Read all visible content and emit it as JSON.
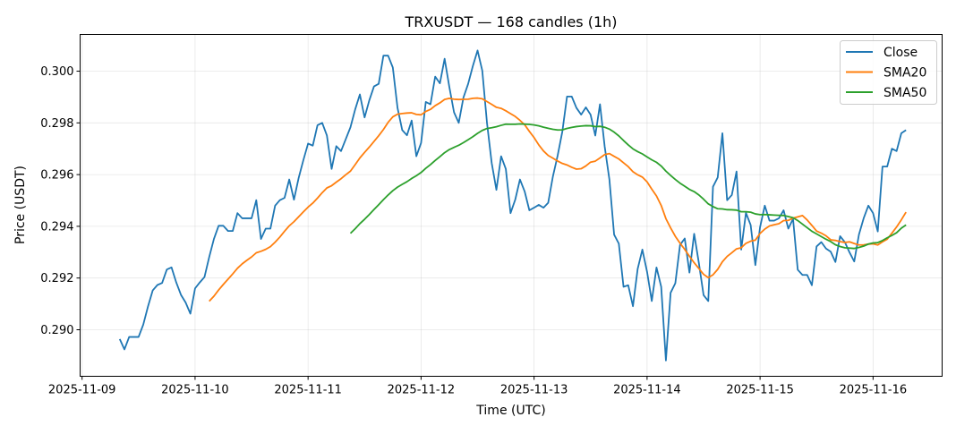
{
  "chart_data": {
    "type": "line",
    "title": "TRXUSDT — 168 candles (1h)",
    "xlabel": "Time (UTC)",
    "ylabel": "Price (USDT)",
    "x_start": "2025-11-09T08:00",
    "x_interval_hours": 1,
    "xlim": [
      "2025-11-08T23:35",
      "2025-11-16T14:40"
    ],
    "ylim": [
      0.2882,
      0.30142
    ],
    "x_ticks": [
      "2025-11-09",
      "2025-11-10",
      "2025-11-11",
      "2025-11-12",
      "2025-11-13",
      "2025-11-14",
      "2025-11-15",
      "2025-11-16"
    ],
    "y_ticks": [
      "0.290",
      "0.292",
      "0.294",
      "0.296",
      "0.298",
      "0.300"
    ],
    "grid": true,
    "legend_position": "top-right",
    "series": [
      {
        "name": "Close",
        "color": "#1f77b4",
        "values": [
          0.28964,
          0.28924,
          0.28972,
          0.28972,
          0.28972,
          0.2902,
          0.2909,
          0.29152,
          0.29173,
          0.29181,
          0.29233,
          0.29241,
          0.29183,
          0.29135,
          0.29105,
          0.29062,
          0.2916,
          0.29183,
          0.29204,
          0.29281,
          0.29351,
          0.29402,
          0.29402,
          0.29382,
          0.29382,
          0.29451,
          0.29431,
          0.29431,
          0.29431,
          0.29501,
          0.29351,
          0.29391,
          0.29391,
          0.2948,
          0.29501,
          0.2951,
          0.29581,
          0.29503,
          0.29587,
          0.29656,
          0.2972,
          0.29712,
          0.29791,
          0.298,
          0.29751,
          0.29622,
          0.2971,
          0.29691,
          0.29737,
          0.29783,
          0.29852,
          0.2991,
          0.29821,
          0.29887,
          0.29941,
          0.29951,
          0.3006,
          0.3006,
          0.30014,
          0.29858,
          0.29772,
          0.29752,
          0.29809,
          0.29671,
          0.29722,
          0.29881,
          0.29872,
          0.29979,
          0.29953,
          0.30048,
          0.29939,
          0.29841,
          0.298,
          0.29898,
          0.29951,
          0.3002,
          0.3008,
          0.30002,
          0.298,
          0.29645,
          0.29541,
          0.29671,
          0.29622,
          0.29451,
          0.29503,
          0.29581,
          0.29535,
          0.29462,
          0.29472,
          0.29483,
          0.29472,
          0.29491,
          0.29593,
          0.29673,
          0.29766,
          0.29902,
          0.29902,
          0.29858,
          0.29832,
          0.2986,
          0.29832,
          0.29751,
          0.29872,
          0.29708,
          0.29581,
          0.29368,
          0.29333,
          0.29166,
          0.29172,
          0.29091,
          0.29235,
          0.2931,
          0.29224,
          0.29111,
          0.29241,
          0.29166,
          0.28881,
          0.29143,
          0.2918,
          0.29328,
          0.29353,
          0.29221,
          0.29371,
          0.29258,
          0.29134,
          0.29111,
          0.29553,
          0.29589,
          0.2976,
          0.29501,
          0.29521,
          0.29612,
          0.2931,
          0.29452,
          0.29405,
          0.2925,
          0.29397,
          0.2948,
          0.29422,
          0.29422,
          0.29431,
          0.29462,
          0.29391,
          0.29429,
          0.29232,
          0.29212,
          0.29212,
          0.29172,
          0.29322,
          0.29339,
          0.29314,
          0.29302,
          0.29262,
          0.29362,
          0.29339,
          0.29299,
          0.29264,
          0.29368,
          0.29431,
          0.2948,
          0.29451,
          0.2938,
          0.29631,
          0.29631,
          0.297,
          0.29691,
          0.2976,
          0.29772
        ]
      },
      {
        "name": "SMA20",
        "color": "#ff7f0e",
        "sma_of": "Close",
        "window": 20
      },
      {
        "name": "SMA50",
        "color": "#2ca02c",
        "sma_of": "Close",
        "window": 50
      }
    ]
  }
}
